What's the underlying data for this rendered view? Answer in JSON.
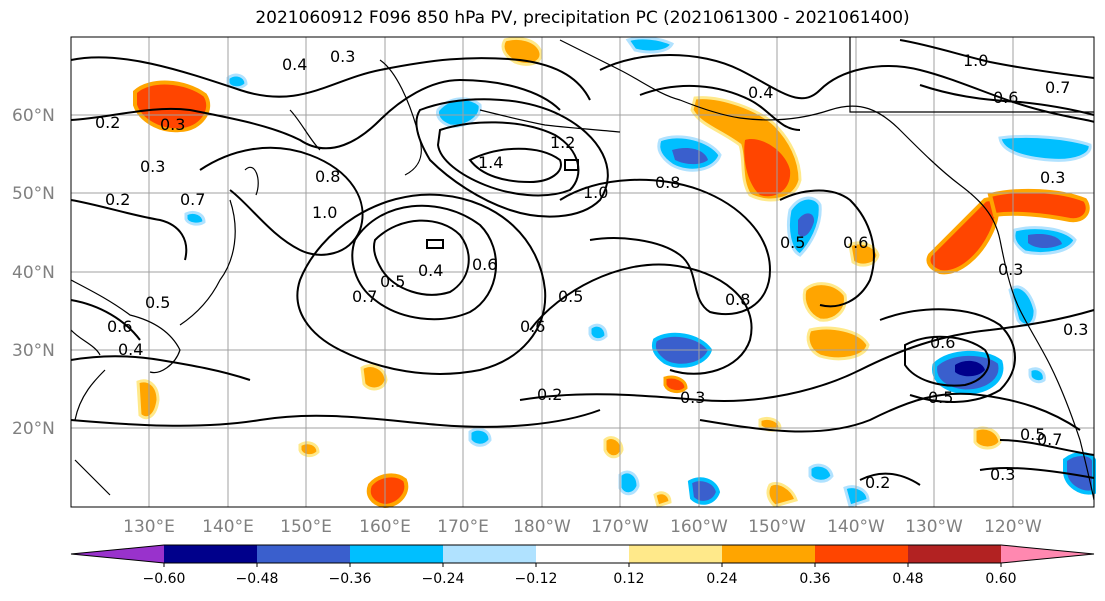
{
  "title": "2021060912 F096 850 hPa PV, precipitation PC (2021061300 - 2021061400)",
  "lat_labels": [
    "60°N",
    "50°N",
    "40°N",
    "30°N",
    "20°N"
  ],
  "lon_labels": [
    "130°E",
    "140°E",
    "150°E",
    "160°E",
    "170°E",
    "180°W",
    "170°W",
    "160°W",
    "150°W",
    "140°W",
    "130°W",
    "120°W"
  ],
  "contour_labels": [
    "0.2",
    "0.4",
    "0.3",
    "0.3",
    "0.4",
    "1.0",
    "0.7",
    "0.6",
    "0.7",
    "0.3",
    "0.2",
    "0.8",
    "1.0",
    "1.4",
    "1.2",
    "1.0",
    "0.8",
    "0.4",
    "0.5",
    "0.6",
    "0.7",
    "0.5",
    "0.6",
    "0.5",
    "0.8",
    "0.5",
    "0.6",
    "0.3",
    "0.2",
    "0.3",
    "0.6",
    "0.5",
    "0.6",
    "0.4",
    "0.5",
    "0.2",
    "0.3",
    "0.7",
    "0.3",
    "0.3"
  ],
  "colorbar": {
    "ticks": [
      "−0.60",
      "−0.48",
      "−0.36",
      "−0.24",
      "−0.12",
      "0.12",
      "0.24",
      "0.36",
      "0.48",
      "0.60"
    ],
    "colors": [
      "#9932cc",
      "#00008b",
      "#3a5fcd",
      "#00bfff",
      "#b0e2ff",
      "#ffffff",
      "#ffe98a",
      "#ffa500",
      "#ff4500",
      "#b22222",
      "#ff88b0"
    ]
  },
  "colors": {
    "contour": "#000000",
    "grid": "#a0a0a0",
    "label": "#808080"
  }
}
